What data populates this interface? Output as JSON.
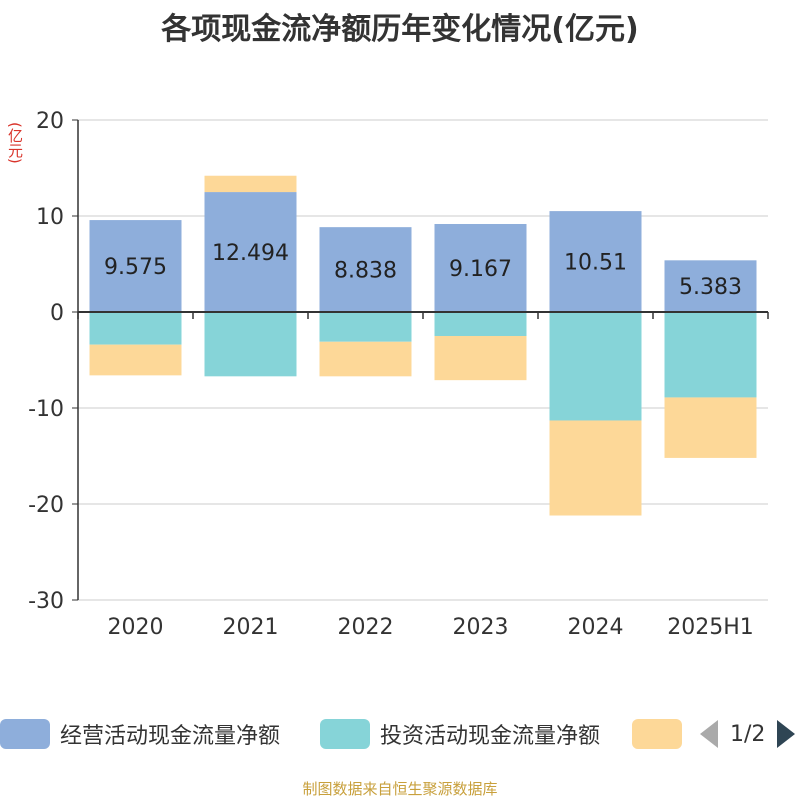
{
  "title": "各项现金流净额历年变化情况(亿元)",
  "unit": "(亿元)",
  "source": "制图数据来自恒生聚源数据库",
  "pager": {
    "current": "1/2"
  },
  "colors": {
    "operating": "#8eaedb",
    "investing": "#86d4d8",
    "financing": "#fdd898",
    "grid": "#cccccc",
    "axis": "#333333"
  },
  "chart_data": {
    "type": "bar",
    "stacked": true,
    "categories": [
      "2020",
      "2021",
      "2022",
      "2023",
      "2024",
      "2025H1"
    ],
    "ylim": [
      -30,
      20
    ],
    "yticks": [
      20,
      10,
      0,
      -10,
      -20,
      -30
    ],
    "grid": true,
    "legend_position": "bottom",
    "series": [
      {
        "name": "经营活动现金流量净额",
        "color": "#8eaedb",
        "values": [
          9.575,
          12.494,
          8.838,
          9.167,
          10.51,
          5.383
        ],
        "show_labels": true
      },
      {
        "name": "投资活动现金流量净额",
        "color": "#86d4d8",
        "values": [
          -3.4,
          -6.7,
          -3.1,
          -2.5,
          -11.3,
          -8.9
        ],
        "show_labels": false
      },
      {
        "name": "",
        "color": "#fdd898",
        "values": [
          -3.2,
          1.7,
          -3.6,
          -4.6,
          -9.9,
          -6.3
        ],
        "show_labels": false
      }
    ]
  }
}
